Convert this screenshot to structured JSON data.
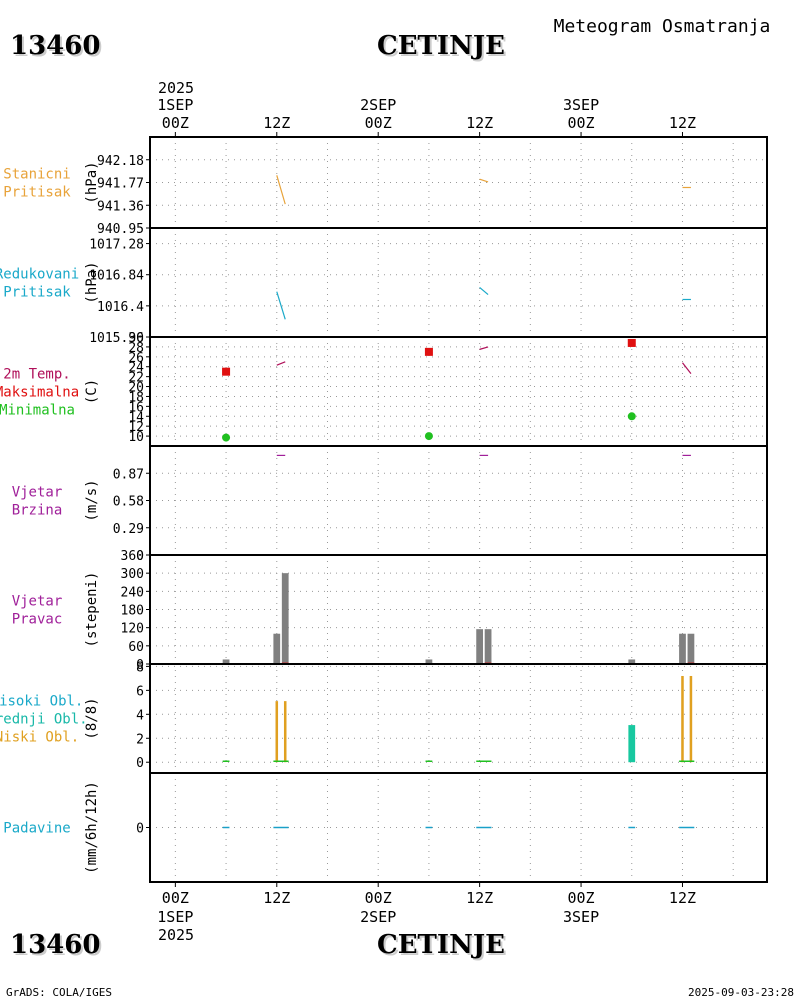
{
  "header": {
    "station_id": "13460",
    "station_name": "CETINJE",
    "subtitle": "Meteogram Osmatranja"
  },
  "footer": {
    "credit": "GrADS: COLA/IGES",
    "timestamp": "2025-09-03-23:28"
  },
  "time_axis": {
    "top_year": "2025",
    "bottom_year": "2025",
    "hour_labels": [
      "00Z",
      "12Z",
      "00Z",
      "12Z",
      "00Z",
      "12Z"
    ],
    "day_labels": [
      {
        "label": "1SEP",
        "at": 0
      },
      {
        "label": "2SEP",
        "at": 24
      },
      {
        "label": "3SEP",
        "at": 48
      }
    ],
    "range_hours": [
      -3,
      70
    ]
  },
  "colors": {
    "orange": "#e8a33a",
    "cyan": "#1aa9c9",
    "crimson": "#b0105a",
    "red": "#e01010",
    "green": "#20c020",
    "purple": "#a0209a",
    "gray": "#808080",
    "gold": "#e0a020",
    "teal": "#18c8a0",
    "precip_blue": "#1aa0c8"
  },
  "chart_data": [
    {
      "id": "station-pressure",
      "type": "line",
      "label_lines": [
        "Stanicni",
        "Pritisak"
      ],
      "label_colors": [
        "#e8a33a",
        "#e8a33a"
      ],
      "unit": "(hPa)",
      "ylim": [
        940.95,
        942.59
      ],
      "ticks": [
        "942.18",
        "941.77",
        "941.36",
        "940.95"
      ],
      "tick_values": [
        942.18,
        941.77,
        941.36,
        940.95
      ],
      "series": [
        {
          "color": "#e8a33a",
          "segments": [
            [
              [
                12,
                941.9
              ],
              [
                13,
                941.38
              ]
            ],
            [
              [
                36,
                941.83
              ],
              [
                37,
                941.78
              ]
            ],
            [
              [
                60,
                941.68
              ],
              [
                61,
                941.68
              ]
            ]
          ]
        }
      ]
    },
    {
      "id": "reduced-pressure",
      "type": "line",
      "label_lines": [
        "Redukovani",
        "Pritisak"
      ],
      "label_colors": [
        "#1aa9c9",
        "#1aa9c9"
      ],
      "unit": "(hPa)",
      "ylim": [
        1015.96,
        1017.5
      ],
      "ticks": [
        "1017.28",
        "1016.84",
        "1016.4",
        "1015.96"
      ],
      "tick_values": [
        1017.28,
        1016.84,
        1016.4,
        1015.96
      ],
      "series": [
        {
          "color": "#1aa9c9",
          "segments": [
            [
              [
                12,
                1016.6
              ],
              [
                13,
                1016.21
              ]
            ],
            [
              [
                36,
                1016.66
              ],
              [
                37,
                1016.56
              ]
            ],
            [
              [
                60,
                1016.49
              ],
              [
                61,
                1016.49
              ]
            ]
          ]
        }
      ]
    },
    {
      "id": "temperature",
      "type": "line+scatter",
      "label_lines": [
        "2m Temp.",
        "Maksimalna",
        "Minimalna"
      ],
      "label_colors": [
        "#b0105a",
        "#e01010",
        "#20c020"
      ],
      "unit": "(C)",
      "ylim": [
        8,
        30
      ],
      "ticks": [
        "30",
        "28",
        "26",
        "24",
        "22",
        "20",
        "18",
        "16",
        "14",
        "12",
        "10"
      ],
      "tick_values": [
        30,
        28,
        26,
        24,
        22,
        20,
        18,
        16,
        14,
        12,
        10
      ],
      "series": [
        {
          "name": "2m Temp.",
          "color": "#b0105a",
          "segments": [
            [
              [
                12,
                24.3
              ],
              [
                13,
                25.0
              ]
            ],
            [
              [
                36,
                27.5
              ],
              [
                37,
                28.0
              ]
            ],
            [
              [
                60,
                24.8
              ],
              [
                61,
                22.6
              ]
            ]
          ]
        }
      ],
      "markers": {
        "max": {
          "color": "#e01010",
          "points": [
            [
              6,
              23.0
            ],
            [
              30,
              27.0
            ],
            [
              54,
              28.8
            ]
          ]
        },
        "min": {
          "color": "#20c020",
          "points": [
            [
              6,
              9.7
            ],
            [
              30,
              10.0
            ],
            [
              54,
              14.0
            ]
          ]
        }
      }
    },
    {
      "id": "wind-speed",
      "type": "line",
      "label_lines": [
        "Vjetar",
        "Brzina"
      ],
      "label_colors": [
        "#a0209a",
        "#a0209a"
      ],
      "unit": "(m/s)",
      "ylim": [
        0,
        1.16
      ],
      "ticks": [
        "0.87",
        "0.58",
        "0.29",
        "0"
      ],
      "tick_values": [
        0.87,
        0.58,
        0.29,
        0
      ],
      "series": [
        {
          "color": "#a0209a",
          "segments": [
            [
              [
                12,
                1.06
              ],
              [
                13,
                1.06
              ]
            ],
            [
              [
                36,
                1.06
              ],
              [
                37,
                1.06
              ]
            ],
            [
              [
                60,
                1.06
              ],
              [
                61,
                1.06
              ]
            ]
          ]
        }
      ]
    },
    {
      "id": "wind-direction",
      "type": "bar",
      "label_lines": [
        "Vjetar",
        "Pravac"
      ],
      "label_colors": [
        "#a0209a",
        "#a0209a"
      ],
      "unit": "(stepeni)",
      "ylim": [
        0,
        360
      ],
      "ticks": [
        "360",
        "300",
        "240",
        "180",
        "120",
        "60",
        "0"
      ],
      "tick_values": [
        360,
        300,
        240,
        180,
        120,
        60,
        0
      ],
      "bar_width_hours": 0.8,
      "bars": [
        {
          "x": 6,
          "value": 15,
          "color": "#808080"
        },
        {
          "x": 12,
          "value": 100,
          "color": "#808080"
        },
        {
          "x": 13,
          "value": 300,
          "color": "#808080"
        },
        {
          "x": 30,
          "value": 15,
          "color": "#808080"
        },
        {
          "x": 36,
          "value": 115,
          "color": "#808080"
        },
        {
          "x": 37,
          "value": 115,
          "color": "#808080"
        },
        {
          "x": 54,
          "value": 15,
          "color": "#808080"
        },
        {
          "x": 60,
          "value": 100,
          "color": "#808080"
        },
        {
          "x": 61,
          "value": 100,
          "color": "#808080"
        }
      ],
      "extra_segments": [
        {
          "color": "#e01010",
          "points": [
            [
              12.6,
              2
            ],
            [
              13.4,
              2
            ]
          ]
        },
        {
          "color": "#e01010",
          "points": [
            [
              36.6,
              2
            ],
            [
              37.4,
              2
            ]
          ]
        },
        {
          "color": "#e01010",
          "points": [
            [
              60.6,
              2
            ],
            [
              61.4,
              2
            ]
          ]
        }
      ]
    },
    {
      "id": "clouds",
      "type": "bar",
      "label_lines": [
        "Visoki Obl.",
        "Srednji Obl.",
        "Niski Obl."
      ],
      "label_colors": [
        "#1aa9c9",
        "#18b8a8",
        "#e0a020"
      ],
      "unit": "(8/8)",
      "ylim": [
        -0.9,
        8.2
      ],
      "ticks": [
        "8",
        "6",
        "4",
        "2",
        "0"
      ],
      "tick_values": [
        8,
        6,
        4,
        2,
        0
      ],
      "bars": [
        {
          "x": 12,
          "value": 5.1,
          "color": "#e0a020",
          "width": 0.3
        },
        {
          "x": 13,
          "value": 5.1,
          "color": "#e0a020",
          "width": 0.3
        },
        {
          "x": 54,
          "value": 3.1,
          "color": "#18c8a0",
          "width": 0.8
        },
        {
          "x": 60,
          "value": 7.2,
          "color": "#e0a020",
          "width": 0.3
        },
        {
          "x": 61,
          "value": 7.2,
          "color": "#e0a020",
          "width": 0.3
        }
      ],
      "extra_segments": [
        {
          "color": "#20c020",
          "points": [
            [
              5.6,
              0.08
            ],
            [
              6.4,
              0.08
            ]
          ]
        },
        {
          "color": "#20c020",
          "points": [
            [
              11.6,
              0.08
            ],
            [
              13.4,
              0.08
            ]
          ]
        },
        {
          "color": "#20c020",
          "points": [
            [
              29.6,
              0.08
            ],
            [
              30.4,
              0.08
            ]
          ]
        },
        {
          "color": "#20c020",
          "points": [
            [
              35.6,
              0.08
            ],
            [
              37.4,
              0.08
            ]
          ]
        },
        {
          "color": "#20c020",
          "points": [
            [
              59.6,
              0.08
            ],
            [
              61.4,
              0.08
            ]
          ]
        }
      ]
    },
    {
      "id": "precipitation",
      "type": "bar",
      "label_lines": [
        "Padavine"
      ],
      "label_colors": [
        "#1aa9c9"
      ],
      "unit": "(mm/6h/12h)",
      "ylim": [
        -5,
        5
      ],
      "ticks": [
        "0"
      ],
      "tick_values": [
        0
      ],
      "bars": [],
      "extra_segments": [
        {
          "color": "#1aa0c8",
          "points": [
            [
              5.6,
              0
            ],
            [
              6.4,
              0
            ]
          ]
        },
        {
          "color": "#1aa0c8",
          "points": [
            [
              11.6,
              0
            ],
            [
              13.4,
              0
            ]
          ]
        },
        {
          "color": "#1aa0c8",
          "points": [
            [
              29.6,
              0
            ],
            [
              30.4,
              0
            ]
          ]
        },
        {
          "color": "#1aa0c8",
          "points": [
            [
              35.6,
              0
            ],
            [
              37.4,
              0
            ]
          ]
        },
        {
          "color": "#1aa0c8",
          "points": [
            [
              53.6,
              0
            ],
            [
              54.4,
              0
            ]
          ]
        },
        {
          "color": "#1aa0c8",
          "points": [
            [
              59.6,
              0
            ],
            [
              61.4,
              0
            ]
          ]
        }
      ]
    }
  ]
}
